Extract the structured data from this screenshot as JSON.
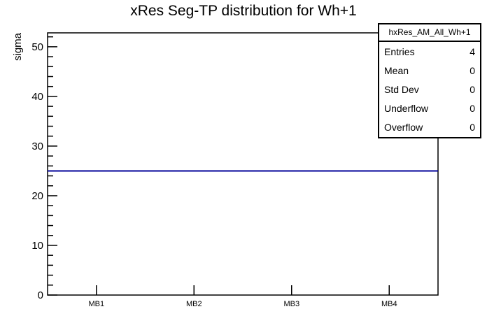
{
  "title": "xRes Seg-TP distribution for Wh+1",
  "chart_data": {
    "type": "line",
    "title": "xRes Seg-TP distribution for Wh+1",
    "xlabel": "",
    "ylabel": "sigma",
    "categories": [
      "MB1",
      "MB2",
      "MB3",
      "MB4"
    ],
    "values": [
      25,
      25,
      25,
      25
    ],
    "ylim": [
      0,
      52.8
    ],
    "yticks": [
      0,
      10,
      20,
      30,
      40,
      50
    ],
    "y_minor_step": 2,
    "grid": false,
    "legend_position": "none",
    "line_color": "#000099",
    "axis_color": "#000000",
    "background_color": "#ffffff"
  },
  "stats_box": {
    "header": "hxRes_AM_All_Wh+1",
    "rows": [
      {
        "label": "Entries",
        "value": "4"
      },
      {
        "label": "Mean",
        "value": "0"
      },
      {
        "label": "Std Dev",
        "value": "0"
      },
      {
        "label": "Underflow",
        "value": "0"
      },
      {
        "label": "Overflow",
        "value": "0"
      }
    ]
  }
}
